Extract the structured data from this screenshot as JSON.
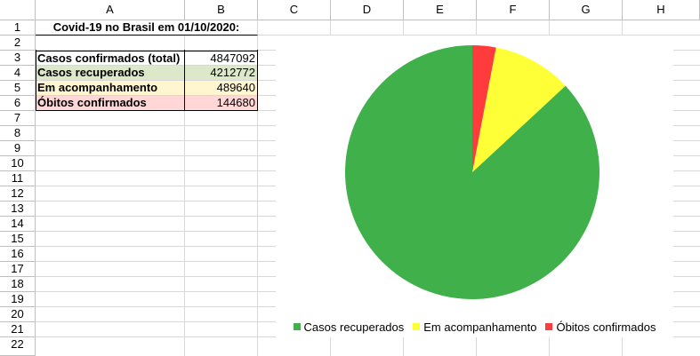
{
  "columns": [
    "A",
    "B",
    "C",
    "D",
    "E",
    "F",
    "G",
    "H"
  ],
  "rows": [
    "1",
    "2",
    "3",
    "4",
    "5",
    "6",
    "7",
    "8",
    "9",
    "10",
    "11",
    "12",
    "13",
    "14",
    "15",
    "16",
    "17",
    "18",
    "19",
    "20",
    "21",
    "22"
  ],
  "cells": {
    "title": "Covid-19 no Brasil em 01/10/2020:",
    "a3": "Casos confirmados (total)",
    "b3": "4847092",
    "a4": "Casos recuperados",
    "b4": "4212772",
    "a5": "Em acompanhamento",
    "b5": "489640",
    "a6": "Óbitos confirmados",
    "b6": "144680"
  },
  "row_colors": {
    "recuperados": "#dde8cb",
    "acompanhamento": "#fff5ce",
    "obitos": "#ffd7d7"
  },
  "chart_data": {
    "type": "pie",
    "title": "",
    "categories": [
      "Casos recuperados",
      "Em acompanhamento",
      "Óbitos confirmados"
    ],
    "values": [
      4212772,
      489640,
      144680
    ],
    "colors": [
      "#3fb04a",
      "#ffff38",
      "#ff3b3b"
    ],
    "legend_position": "bottom"
  }
}
